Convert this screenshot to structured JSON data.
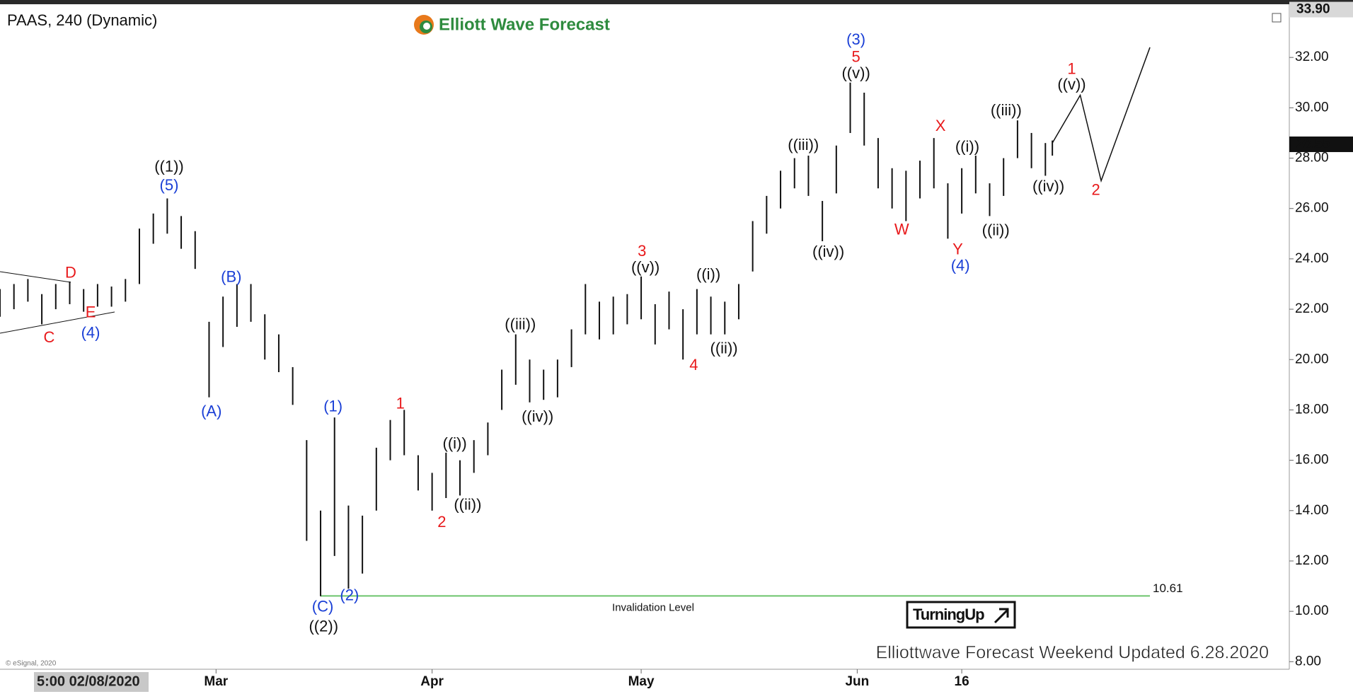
{
  "chart_data": {
    "type": "hilo",
    "title": "PAAS, 240 (Dynamic)",
    "brand": "Elliott Wave Forecast",
    "footer": "Elliottwave Forecast Weekend Updated 6.28.2020",
    "copyright": "© eSignal, 2020",
    "cursor_date": "5:00 02/08/2020",
    "badge": "TurningUp",
    "color": "#111111",
    "xlim": [
      30,
      215
    ],
    "ylim": [
      7.7,
      34.0
    ],
    "xticks": [
      {
        "value": 61,
        "label": "Mar"
      },
      {
        "value": 92,
        "label": "Apr"
      },
      {
        "value": 122,
        "label": "May"
      },
      {
        "value": 153,
        "label": "Jun"
      },
      {
        "value": 168,
        "label": "16"
      }
    ],
    "yticks": [
      {
        "value": 8,
        "label": "8.00"
      },
      {
        "value": 10,
        "label": "10.00"
      },
      {
        "value": 12,
        "label": "12.00"
      },
      {
        "value": 14,
        "label": "14.00"
      },
      {
        "value": 16,
        "label": "16.00"
      },
      {
        "value": 18,
        "label": "18.00"
      },
      {
        "value": 20,
        "label": "20.00"
      },
      {
        "value": 22,
        "label": "22.00"
      },
      {
        "value": 24,
        "label": "24.00"
      },
      {
        "value": 26,
        "label": "26.00"
      },
      {
        "value": 28,
        "label": "28.00"
      },
      {
        "value": 30,
        "label": "30.00"
      },
      {
        "value": 32,
        "label": "32.00"
      }
    ],
    "price_marks": [
      {
        "value": 33.9,
        "label": "33.90"
      },
      {
        "value": 28.55,
        "label": "28.55"
      }
    ],
    "series": [
      {
        "x": [
          30,
          32,
          34,
          36,
          38,
          40,
          42,
          44,
          46,
          48,
          50,
          52,
          54,
          56,
          58,
          60,
          62,
          64,
          66,
          68,
          70,
          72,
          74,
          76,
          78,
          80,
          82,
          84,
          86,
          88,
          90,
          92,
          94,
          96,
          98,
          100,
          102,
          104,
          106,
          108,
          110,
          112,
          114,
          116,
          118,
          120,
          122,
          124,
          126,
          128,
          130,
          132,
          134,
          136,
          138,
          140,
          142,
          144,
          146,
          148,
          150,
          152,
          154,
          156,
          158,
          160,
          162,
          164,
          166,
          168,
          170,
          172,
          174,
          176,
          178,
          180,
          181
        ],
        "high": [
          22.8,
          23.0,
          23.2,
          22.6,
          23.0,
          23.1,
          22.8,
          23.0,
          22.9,
          23.2,
          25.2,
          25.8,
          26.4,
          25.7,
          25.1,
          21.5,
          22.5,
          23.0,
          23.0,
          21.8,
          21.0,
          19.7,
          16.8,
          14.0,
          17.7,
          14.2,
          13.8,
          16.5,
          17.6,
          18.0,
          16.2,
          15.5,
          16.3,
          16.0,
          16.8,
          17.5,
          19.6,
          21.0,
          20.0,
          19.6,
          20.0,
          21.2,
          23.0,
          22.3,
          22.5,
          22.6,
          23.3,
          22.2,
          22.7,
          22.0,
          22.8,
          22.5,
          22.3,
          23.0,
          25.5,
          26.5,
          27.5,
          28.0,
          28.1,
          26.3,
          28.5,
          31.0,
          30.6,
          28.8,
          27.6,
          27.5,
          27.9,
          28.8,
          27.0,
          27.6,
          28.1,
          27.0,
          28.0,
          29.5,
          29.0,
          28.6,
          28.7
        ],
        "low": [
          21.7,
          22.0,
          22.3,
          21.4,
          22.0,
          22.2,
          21.9,
          22.1,
          22.1,
          22.3,
          23.0,
          24.6,
          25.0,
          24.4,
          23.6,
          18.5,
          20.5,
          21.3,
          21.5,
          20.0,
          19.5,
          18.2,
          12.8,
          10.6,
          12.2,
          10.9,
          11.5,
          14.0,
          16.0,
          16.2,
          14.8,
          14.0,
          14.5,
          14.6,
          15.5,
          16.2,
          18.0,
          19.0,
          18.3,
          18.4,
          18.5,
          19.7,
          21.0,
          20.8,
          21.0,
          21.4,
          21.6,
          20.6,
          21.2,
          20.0,
          21.0,
          21.0,
          21.0,
          21.6,
          23.5,
          25.0,
          26.0,
          26.8,
          26.5,
          24.7,
          26.6,
          29.0,
          28.5,
          26.8,
          26.0,
          25.5,
          26.4,
          26.8,
          24.8,
          25.8,
          26.6,
          25.7,
          26.5,
          28.0,
          27.6,
          27.3,
          28.1
        ]
      }
    ],
    "projection": {
      "color": "#111111",
      "x": [
        181,
        185,
        188,
        195
      ],
      "y": [
        28.6,
        30.5,
        27.1,
        32.4
      ]
    },
    "invalidation": {
      "label": "Invalidation Level",
      "value": 10.61,
      "color": "#6cc46c"
    },
    "annotations": [
      {
        "text": "((1))",
        "color": "#111111"
      },
      {
        "text": "(5)",
        "color": "#1a3fd6"
      },
      {
        "text": "D",
        "color": "#e8191b"
      },
      {
        "text": "E",
        "color": "#e8191b"
      },
      {
        "text": "C",
        "color": "#e8191b"
      },
      {
        "text": "(4)",
        "color": "#1a3fd6"
      },
      {
        "text": "(B)",
        "color": "#1a3fd6"
      },
      {
        "text": "(A)",
        "color": "#1a3fd6"
      },
      {
        "text": "(1)",
        "color": "#1a3fd6"
      },
      {
        "text": "(C)",
        "color": "#1a3fd6"
      },
      {
        "text": "((2))",
        "color": "#111111"
      },
      {
        "text": "(2)",
        "color": "#1a3fd6"
      },
      {
        "text": "1",
        "color": "#e8191b"
      },
      {
        "text": "2",
        "color": "#e8191b"
      },
      {
        "text": "((i))",
        "color": "#111111"
      },
      {
        "text": "((ii))",
        "color": "#111111"
      },
      {
        "text": "((iii))",
        "color": "#111111"
      },
      {
        "text": "((iv))",
        "color": "#111111"
      },
      {
        "text": "3",
        "color": "#e8191b"
      },
      {
        "text": "((v))",
        "color": "#111111"
      },
      {
        "text": "4",
        "color": "#e8191b"
      },
      {
        "text": "((i))",
        "color": "#111111"
      },
      {
        "text": "((ii))",
        "color": "#111111"
      },
      {
        "text": "((iii))",
        "color": "#111111"
      },
      {
        "text": "((iv))",
        "color": "#111111"
      },
      {
        "text": "(3)",
        "color": "#1a3fd6"
      },
      {
        "text": "5",
        "color": "#e8191b"
      },
      {
        "text": "((v))",
        "color": "#111111"
      },
      {
        "text": "W",
        "color": "#e8191b"
      },
      {
        "text": "X",
        "color": "#e8191b"
      },
      {
        "text": "((i))",
        "color": "#111111"
      },
      {
        "text": "Y",
        "color": "#e8191b"
      },
      {
        "text": "(4)",
        "color": "#1a3fd6"
      },
      {
        "text": "((ii))",
        "color": "#111111"
      },
      {
        "text": "((iii))",
        "color": "#111111"
      },
      {
        "text": "((iv))",
        "color": "#111111"
      },
      {
        "text": "1",
        "color": "#e8191b"
      },
      {
        "text": "((v))",
        "color": "#111111"
      },
      {
        "text": "2",
        "color": "#e8191b"
      }
    ]
  }
}
